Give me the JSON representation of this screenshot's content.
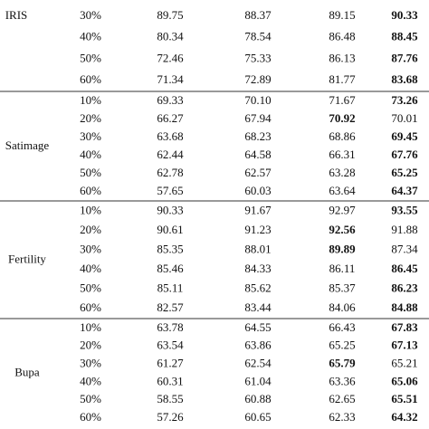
{
  "table": {
    "groups": [
      {
        "dataset": "IRIS",
        "rows": [
          {
            "ratio": "30%",
            "values": [
              "89.75",
              "88.37",
              "89.15",
              "90.33"
            ],
            "bold": 3
          },
          {
            "ratio": "40%",
            "values": [
              "80.34",
              "78.54",
              "86.48",
              "88.45"
            ],
            "bold": 3
          },
          {
            "ratio": "50%",
            "values": [
              "72.46",
              "75.33",
              "86.13",
              "87.76"
            ],
            "bold": 3
          },
          {
            "ratio": "60%",
            "values": [
              "71.34",
              "72.89",
              "81.77",
              "83.68"
            ],
            "bold": 3
          }
        ]
      },
      {
        "dataset": "Satimage",
        "rows": [
          {
            "ratio": "10%",
            "values": [
              "69.33",
              "70.10",
              "71.67",
              "73.26"
            ],
            "bold": 3
          },
          {
            "ratio": "20%",
            "values": [
              "66.27",
              "67.94",
              "70.92",
              "70.01"
            ],
            "bold": 2
          },
          {
            "ratio": "30%",
            "values": [
              "63.68",
              "68.23",
              "68.86",
              "69.45"
            ],
            "bold": 3
          },
          {
            "ratio": "40%",
            "values": [
              "62.44",
              "64.58",
              "66.31",
              "67.76"
            ],
            "bold": 3
          },
          {
            "ratio": "50%",
            "values": [
              "62.78",
              "62.57",
              "63.28",
              "65.25"
            ],
            "bold": 3
          },
          {
            "ratio": "60%",
            "values": [
              "57.65",
              "60.03",
              "63.64",
              "64.37"
            ],
            "bold": 3
          }
        ]
      },
      {
        "dataset": "Fertility",
        "rows": [
          {
            "ratio": "10%",
            "values": [
              "90.33",
              "91.67",
              "92.97",
              "93.55"
            ],
            "bold": 3
          },
          {
            "ratio": "20%",
            "values": [
              "90.61",
              "91.23",
              "92.56",
              "91.88"
            ],
            "bold": 2
          },
          {
            "ratio": "30%",
            "values": [
              "85.35",
              "88.01",
              "89.89",
              "87.34"
            ],
            "bold": 2
          },
          {
            "ratio": "40%",
            "values": [
              "85.46",
              "84.33",
              "86.11",
              "86.45"
            ],
            "bold": 3
          },
          {
            "ratio": "50%",
            "values": [
              "85.11",
              "85.62",
              "85.37",
              "86.23"
            ],
            "bold": 3
          },
          {
            "ratio": "60%",
            "values": [
              "82.57",
              "83.44",
              "84.06",
              "84.88"
            ],
            "bold": 3
          }
        ]
      },
      {
        "dataset": "Bupa",
        "rows": [
          {
            "ratio": "10%",
            "values": [
              "63.78",
              "64.55",
              "66.43",
              "67.83"
            ],
            "bold": 3
          },
          {
            "ratio": "20%",
            "values": [
              "63.54",
              "63.86",
              "65.25",
              "67.13"
            ],
            "bold": 3
          },
          {
            "ratio": "30%",
            "values": [
              "61.27",
              "62.54",
              "65.79",
              "65.21"
            ],
            "bold": 2
          },
          {
            "ratio": "40%",
            "values": [
              "60.31",
              "61.04",
              "63.36",
              "65.06"
            ],
            "bold": 3
          },
          {
            "ratio": "50%",
            "values": [
              "58.55",
              "60.88",
              "62.65",
              "65.51"
            ],
            "bold": 3
          },
          {
            "ratio": "60%",
            "values": [
              "57.26",
              "60.65",
              "62.33",
              "64.32"
            ],
            "bold": 3
          }
        ]
      }
    ]
  }
}
